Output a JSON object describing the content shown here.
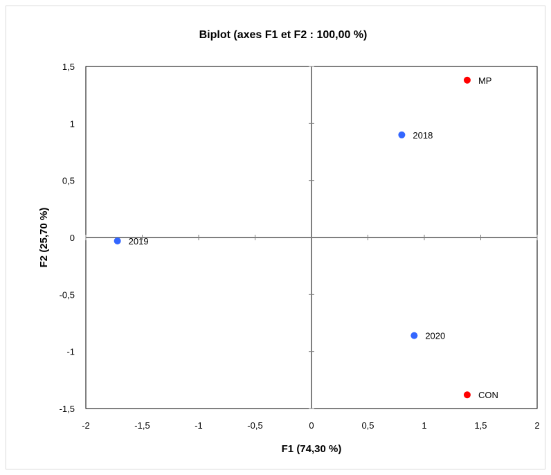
{
  "chart_data": {
    "type": "scatter",
    "title": "Biplot (axes F1 et F2 : 100,00 %)",
    "xlabel": "F1 (74,30 %)",
    "ylabel": "F2 (25,70 %)",
    "xlim": [
      -2,
      2
    ],
    "ylim": [
      -1.5,
      1.5
    ],
    "x_ticks": [
      "-2",
      "-1,5",
      "-1",
      "-0,5",
      "0",
      "0,5",
      "1",
      "1,5",
      "2"
    ],
    "y_ticks": [
      "-1,5",
      "-1",
      "-0,5",
      "0",
      "0,5",
      "1",
      "1,5"
    ],
    "grid": false,
    "series": [
      {
        "color": "#3366ff",
        "points": [
          {
            "label": "2018",
            "x": 0.8,
            "y": 0.9
          },
          {
            "label": "2019",
            "x": -1.72,
            "y": -0.03
          },
          {
            "label": "2020",
            "x": 0.91,
            "y": -0.86
          }
        ]
      },
      {
        "color": "#ff0000",
        "points": [
          {
            "label": "MP",
            "x": 1.38,
            "y": 1.38
          },
          {
            "label": "CON",
            "x": 1.38,
            "y": -1.38
          }
        ]
      }
    ]
  }
}
